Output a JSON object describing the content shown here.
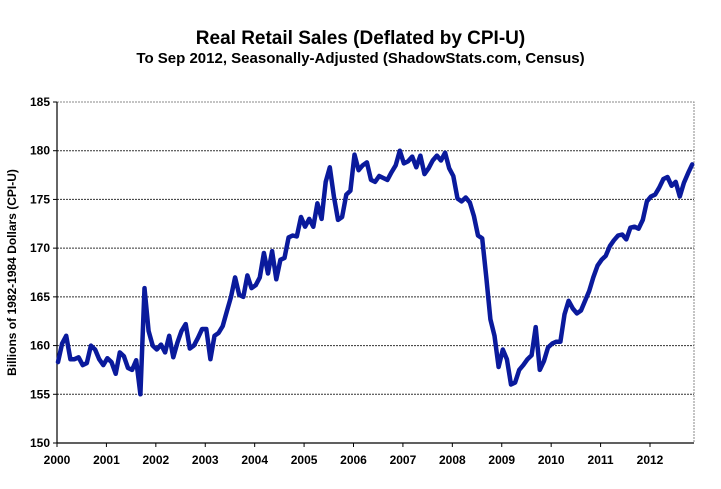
{
  "chart_data": {
    "type": "line",
    "title": "Real Retail Sales (Deflated by CPI-U)",
    "subtitle": "To Sep 2012, Seasonally-Adjusted (ShadowStats.com, Census)",
    "xlabel": "",
    "ylabel": "Billions of 1982-1984 Dollars (CPI-U)",
    "ylim": [
      150,
      185
    ],
    "yticks": [
      150,
      155,
      160,
      165,
      170,
      175,
      180,
      185
    ],
    "xlim": [
      2000,
      2013
    ],
    "xticks": [
      "2000",
      "2001",
      "2002",
      "2003",
      "2004",
      "2005",
      "2006",
      "2007",
      "2008",
      "2009",
      "2010",
      "2011",
      "2012"
    ],
    "grid": true,
    "legend": "none",
    "line_color": "#0a1a9c",
    "frequency": "monthly",
    "start": "2000-01",
    "end": "2012-09",
    "series": [
      {
        "name": "Real Retail Sales",
        "values": [
          158.3,
          160.2,
          161.0,
          158.6,
          158.6,
          158.8,
          158.0,
          158.2,
          160.0,
          159.6,
          158.6,
          158.0,
          158.7,
          158.3,
          157.1,
          159.3,
          158.9,
          157.7,
          157.5,
          158.5,
          155.0,
          165.9,
          161.5,
          160.0,
          159.6,
          160.1,
          159.3,
          161.0,
          158.8,
          160.3,
          161.5,
          162.2,
          159.7,
          160.0,
          160.8,
          161.7,
          161.7,
          158.6,
          161.0,
          161.3,
          162.0,
          163.5,
          165.0,
          167.0,
          165.2,
          165.0,
          167.2,
          165.9,
          166.2,
          167.0,
          169.5,
          167.4,
          169.7,
          166.8,
          168.8,
          169.0,
          171.1,
          171.3,
          171.2,
          173.2,
          172.2,
          173.0,
          172.2,
          174.6,
          173.0,
          176.8,
          178.3,
          175.3,
          172.9,
          173.2,
          175.5,
          175.9,
          179.6,
          178.0,
          178.5,
          178.8,
          177.0,
          176.8,
          177.4,
          177.2,
          177.0,
          177.8,
          178.5,
          180.0,
          178.7,
          178.9,
          179.4,
          178.3,
          179.5,
          177.6,
          178.2,
          179.0,
          179.5,
          179.0,
          179.8,
          178.2,
          177.4,
          175.1,
          174.8,
          175.2,
          174.7,
          173.3,
          171.3,
          171.0,
          167.0,
          162.7,
          161.0,
          157.8,
          159.6,
          158.6,
          156.0,
          156.2,
          157.5,
          158.0,
          158.6,
          159.0,
          161.9,
          157.5,
          158.4,
          159.8,
          160.2,
          160.4,
          160.4,
          163.2,
          164.6,
          163.8,
          163.3,
          163.6,
          164.6,
          165.6,
          167.0,
          168.2,
          168.8,
          169.2,
          170.2,
          170.8,
          171.3,
          171.4,
          170.9,
          172.1,
          172.2,
          172.0,
          172.9,
          174.8,
          175.3,
          175.5,
          176.2,
          177.1,
          177.3,
          176.4,
          176.8,
          175.3,
          176.7,
          177.7,
          178.6
        ]
      }
    ]
  }
}
